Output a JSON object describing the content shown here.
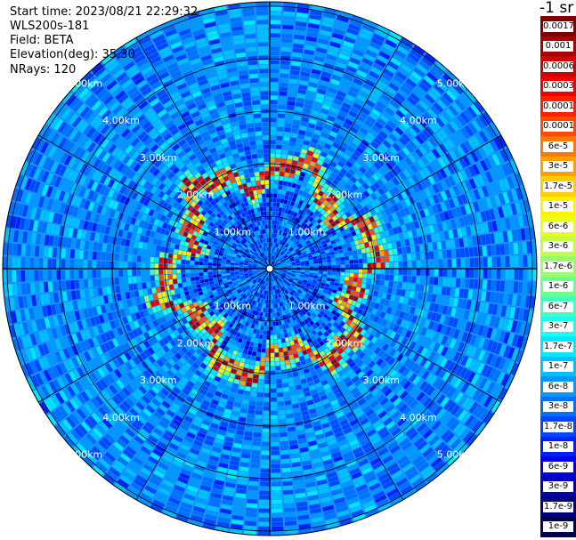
{
  "header": {
    "start_time": "Start time: 2023/08/21 22:29:32",
    "instrument": "WLS200s-181",
    "field": "Field: BETA",
    "elevation": "Elevation(deg): 35.30",
    "nrays": "NRays: 120"
  },
  "colorbar": {
    "unit_label": "-1 sr",
    "bands": [
      {
        "label": "0.0017",
        "color": "#800000"
      },
      {
        "label": "0.001",
        "color": "#a60000"
      },
      {
        "label": "0.0006",
        "color": "#cc0000"
      },
      {
        "label": "0.0003",
        "color": "#f00000"
      },
      {
        "label": "0.00017",
        "color": "#ff2000"
      },
      {
        "label": "0.0001",
        "color": "#ff4a00"
      },
      {
        "label": "6e-5",
        "color": "#ff7800"
      },
      {
        "label": "3e-5",
        "color": "#ffa000"
      },
      {
        "label": "1.7e-5",
        "color": "#ffcc00"
      },
      {
        "label": "1e-5",
        "color": "#fff000"
      },
      {
        "label": "6e-6",
        "color": "#e6ff1a"
      },
      {
        "label": "3e-6",
        "color": "#c0ff40"
      },
      {
        "label": "1.7e-6",
        "color": "#96ff6a"
      },
      {
        "label": "1e-6",
        "color": "#6cff94"
      },
      {
        "label": "6e-7",
        "color": "#40ffc0"
      },
      {
        "label": "3e-7",
        "color": "#1affe6"
      },
      {
        "label": "1.7e-7",
        "color": "#00e8ff"
      },
      {
        "label": "1e-7",
        "color": "#00c0ff"
      },
      {
        "label": "6e-8",
        "color": "#0098ff"
      },
      {
        "label": "3e-8",
        "color": "#0070ff"
      },
      {
        "label": "1.7e-8",
        "color": "#0048ff"
      },
      {
        "label": "1e-8",
        "color": "#0020ff"
      },
      {
        "label": "6e-9",
        "color": "#0000e6"
      },
      {
        "label": "3e-9",
        "color": "#0000b4"
      },
      {
        "label": "1.7e-9",
        "color": "#000080"
      },
      {
        "label": "1e-9",
        "color": "#000050"
      }
    ]
  },
  "plot": {
    "range_ring_labels": [
      "1.00km",
      "2.00km",
      "3.00km",
      "4.00km",
      "5.00km"
    ],
    "ring_label_color": "#ffffff",
    "grid_color": "#000000",
    "background_color": "#1e90ff"
  }
}
